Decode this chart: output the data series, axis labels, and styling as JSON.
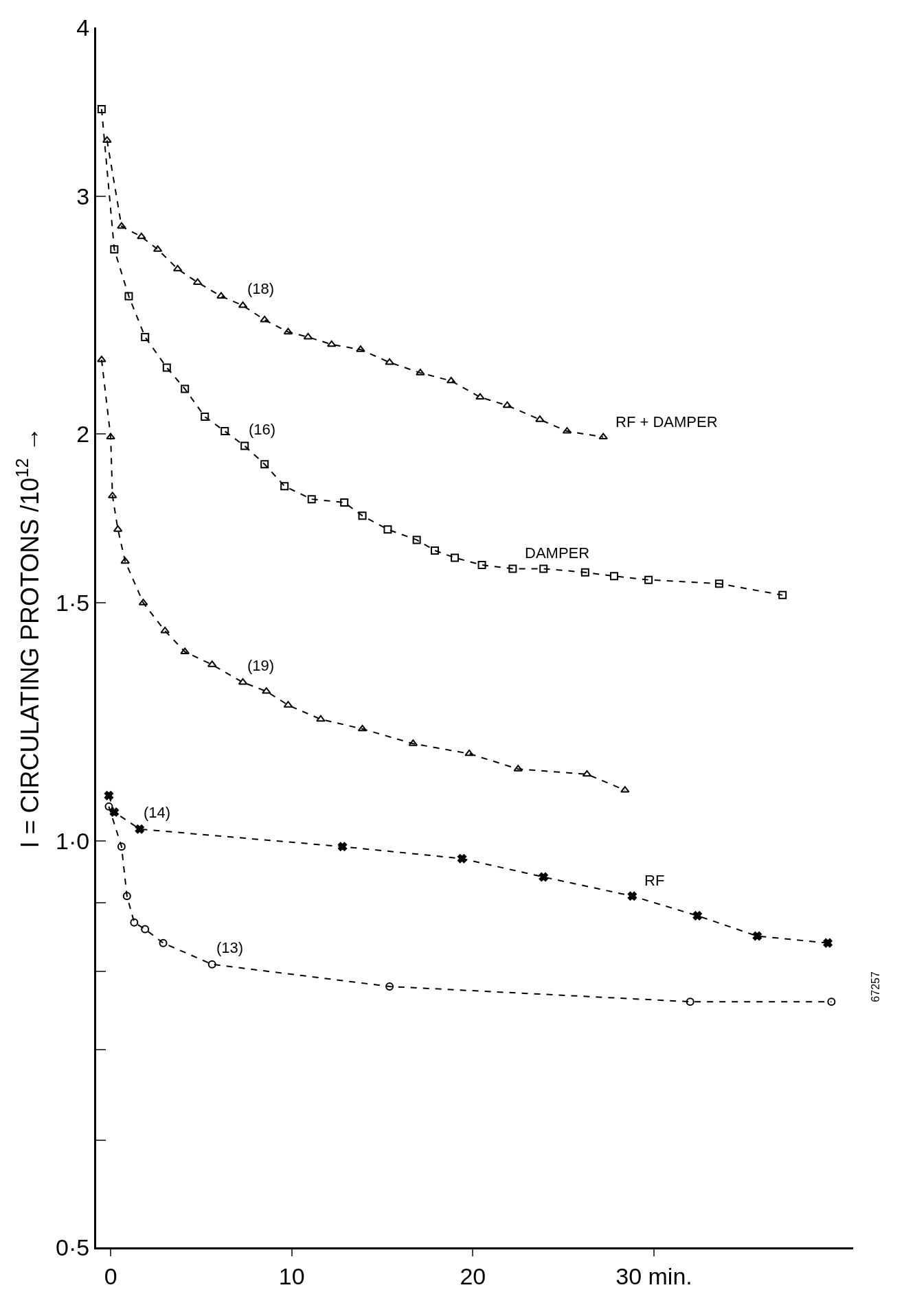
{
  "chart_data": {
    "type": "line",
    "xlabel": null,
    "ylabel": "I = CIRCULATING PROTONS /10$^{12}$ →",
    "log": "y",
    "grid": false,
    "line_style": "dashed",
    "xlim": [
      -0.8,
      41
    ],
    "xticks": [
      0,
      10,
      20,
      {
        "value": 30,
        "label": "30 min."
      }
    ],
    "ylim": [
      0.5,
      4
    ],
    "yticks": [
      {
        "value": 0.5,
        "label": "0·5"
      },
      {
        "value": 0.6,
        "label": null
      },
      {
        "value": 0.7,
        "label": null
      },
      {
        "value": 0.8,
        "label": null
      },
      {
        "value": 0.9,
        "label": null
      },
      {
        "value": 1,
        "label": "1·0"
      },
      {
        "value": 1.5,
        "label": "1·5"
      },
      2,
      3,
      4
    ],
    "series": [
      {
        "name": "(18)",
        "color": "#000000",
        "marker": "triangle",
        "x": [
          -0.2,
          0.6,
          1.7,
          2.6,
          3.7,
          4.8,
          6.1,
          7.3,
          8.5,
          9.8,
          10.9,
          12.2,
          13.8,
          15.4,
          17.1,
          18.8,
          20.4,
          21.9,
          23.7,
          25.2,
          27.2
        ],
        "values": [
          3.3,
          2.85,
          2.8,
          2.74,
          2.65,
          2.59,
          2.53,
          2.49,
          2.43,
          2.38,
          2.36,
          2.33,
          2.31,
          2.26,
          2.22,
          2.19,
          2.13,
          2.1,
          2.05,
          2.01,
          1.99
        ]
      },
      {
        "name": "(16)",
        "color": "#000000",
        "marker": "square",
        "x": [
          -0.5,
          0.2,
          1.0,
          1.9,
          3.1,
          4.1,
          5.2,
          6.3,
          7.4,
          8.5,
          9.6,
          11.1,
          12.9,
          13.9,
          15.3,
          16.9,
          17.9,
          19.0,
          20.5,
          22.2,
          23.9,
          26.2,
          27.8,
          29.7,
          33.6,
          37.1
        ],
        "values": [
          3.48,
          2.74,
          2.53,
          2.36,
          2.24,
          2.16,
          2.06,
          2.01,
          1.96,
          1.9,
          1.83,
          1.79,
          1.78,
          1.74,
          1.7,
          1.67,
          1.64,
          1.62,
          1.6,
          1.59,
          1.59,
          1.58,
          1.57,
          1.56,
          1.55,
          1.52
        ]
      },
      {
        "name": "(19)",
        "color": "#000000",
        "marker": "triangle",
        "x": [
          -0.5,
          0,
          0.1,
          0.4,
          0.8,
          1.8,
          3.0,
          4.1,
          5.6,
          7.3,
          8.6,
          9.8,
          11.6,
          13.9,
          16.7,
          19.8,
          22.5,
          26.3,
          28.4
        ],
        "values": [
          2.27,
          1.99,
          1.8,
          1.7,
          1.61,
          1.5,
          1.43,
          1.38,
          1.35,
          1.31,
          1.29,
          1.26,
          1.23,
          1.21,
          1.18,
          1.16,
          1.13,
          1.12,
          1.09
        ]
      },
      {
        "name": "(14)",
        "color": "#000000",
        "marker": "cross",
        "x": [
          -0.1,
          0.2,
          1.6,
          12.8,
          19.4,
          23.9,
          28.8,
          32.4,
          35.7,
          39.6
        ],
        "values": [
          1.08,
          1.05,
          1.02,
          0.99,
          0.97,
          0.94,
          0.91,
          0.88,
          0.85,
          0.84
        ]
      },
      {
        "name": "(13)",
        "color": "#000000",
        "marker": "circle",
        "x": [
          -0.1,
          0.6,
          0.9,
          1.3,
          1.9,
          2.9,
          5.6,
          15.4,
          32.0,
          39.8
        ],
        "values": [
          1.06,
          0.99,
          0.91,
          0.87,
          0.86,
          0.84,
          0.81,
          0.78,
          0.76,
          0.76
        ]
      }
    ],
    "annotations": [
      {
        "text": "RF + DAMPER",
        "x": 27.2,
        "y": 1.99
      },
      {
        "text": "DAMPER",
        "x": 22.2,
        "y": 1.59
      },
      {
        "text": "RF",
        "x": 28.8,
        "y": 0.91
      },
      "67257"
    ]
  }
}
